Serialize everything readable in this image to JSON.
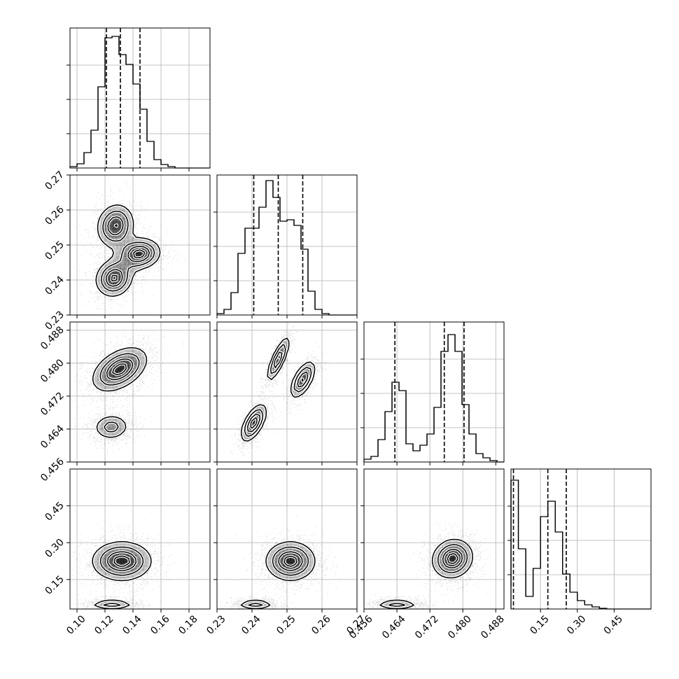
{
  "chart_data": {
    "type": "corner",
    "title": "",
    "parameters": [
      {
        "range": [
          0.095,
          0.195
        ],
        "ticks": [
          0.1,
          0.12,
          0.14,
          0.16,
          0.18
        ],
        "tick_labels": [
          "0.10",
          "0.12",
          "0.14",
          "0.16",
          "0.18"
        ],
        "quantiles": [
          0.121,
          0.131,
          0.145
        ],
        "hist": {
          "bin_edges": [
            0.095,
            0.1,
            0.105,
            0.11,
            0.115,
            0.12,
            0.125,
            0.13,
            0.135,
            0.14,
            0.145,
            0.15,
            0.155,
            0.16,
            0.165,
            0.17,
            0.175,
            0.18,
            0.185,
            0.19,
            0.195
          ],
          "counts": [
            0.01,
            0.03,
            0.11,
            0.27,
            0.58,
            0.93,
            0.94,
            0.81,
            0.74,
            0.6,
            0.42,
            0.19,
            0.06,
            0.025,
            0.01,
            0,
            0,
            0,
            0,
            0
          ]
        }
      },
      {
        "range": [
          0.23,
          0.27
        ],
        "ticks": [
          0.23,
          0.24,
          0.25,
          0.26,
          0.27
        ],
        "tick_labels": [
          "0.23",
          "0.24",
          "0.25",
          "0.26",
          "0.27"
        ],
        "quantiles": [
          0.2405,
          0.2475,
          0.2545
        ],
        "hist": {
          "bin_edges": [
            0.23,
            0.232,
            0.234,
            0.236,
            0.238,
            0.24,
            0.242,
            0.244,
            0.246,
            0.248,
            0.25,
            0.252,
            0.254,
            0.256,
            0.258,
            0.26,
            0.262,
            0.264,
            0.266,
            0.268,
            0.27
          ],
          "counts": [
            0.01,
            0.04,
            0.16,
            0.44,
            0.62,
            0.62,
            0.77,
            0.96,
            0.84,
            0.67,
            0.68,
            0.64,
            0.47,
            0.17,
            0.04,
            0.01,
            0,
            0,
            0,
            0
          ]
        }
      },
      {
        "range": [
          0.456,
          0.49
        ],
        "ticks": [
          0.456,
          0.464,
          0.472,
          0.48,
          0.488
        ],
        "tick_labels": [
          "0.456",
          "0.464",
          "0.472",
          "0.480",
          "0.488"
        ],
        "quantiles": [
          0.4635,
          0.4755,
          0.4803
        ],
        "hist": {
          "bin_edges": [
            0.456,
            0.4577,
            0.4594,
            0.4611,
            0.4628,
            0.4645,
            0.4662,
            0.4679,
            0.4696,
            0.4713,
            0.473,
            0.4747,
            0.4764,
            0.4781,
            0.4798,
            0.4815,
            0.4832,
            0.4849,
            0.4866,
            0.4883,
            0.49
          ],
          "counts": [
            0.02,
            0.04,
            0.16,
            0.36,
            0.57,
            0.51,
            0.13,
            0.08,
            0.12,
            0.2,
            0.39,
            0.79,
            0.91,
            0.79,
            0.41,
            0.2,
            0.06,
            0.03,
            0.01,
            0
          ]
        }
      },
      {
        "range": [
          0.03,
          0.6
        ],
        "ticks": [
          0.15,
          0.3,
          0.45
        ],
        "tick_labels": [
          "0.15",
          "0.30",
          "0.45"
        ],
        "quantiles": [
          0.04,
          0.18,
          0.255
        ],
        "hist": {
          "bin_edges": [
            0.0,
            0.03,
            0.06,
            0.09,
            0.12,
            0.15,
            0.18,
            0.21,
            0.24,
            0.27,
            0.3,
            0.33,
            0.36,
            0.39,
            0.42,
            0.45,
            0.48,
            0.51,
            0.54,
            0.57,
            0.6
          ],
          "counts": [
            0.16,
            0.92,
            0.43,
            0.09,
            0.29,
            0.66,
            0.77,
            0.55,
            0.25,
            0.12,
            0.06,
            0.03,
            0.015,
            0.005,
            0,
            0,
            0,
            0,
            0,
            0
          ]
        }
      }
    ],
    "joint": [
      {
        "row": 1,
        "col": 0,
        "modes": [
          {
            "center": [
              0.1275,
              0.2555
            ],
            "sigma": [
              0.0075,
              0.0035
            ],
            "rho": 0.1,
            "weight": 0.32
          },
          {
            "center": [
              0.1445,
              0.2475
            ],
            "sigma": [
              0.0085,
              0.0025
            ],
            "rho": 0.1,
            "weight": 0.35
          },
          {
            "center": [
              0.1265,
              0.2405
            ],
            "sigma": [
              0.0075,
              0.003
            ],
            "rho": 0.1,
            "weight": 0.33
          }
        ]
      },
      {
        "row": 2,
        "col": 0,
        "modes": [
          {
            "center": [
              0.1305,
              0.4785
            ],
            "sigma": [
              0.011,
              0.003
            ],
            "rho": 0.45,
            "weight": 0.64
          },
          {
            "center": [
              0.1245,
              0.4645
            ],
            "sigma": [
              0.0075,
              0.0018
            ],
            "rho": 0.05,
            "weight": 0.36
          }
        ]
      },
      {
        "row": 2,
        "col": 1,
        "modes": [
          {
            "center": [
              0.2475,
              0.481
            ],
            "sigma": [
              0.0018,
              0.003
            ],
            "rho": 0.8,
            "weight": 0.32
          },
          {
            "center": [
              0.2545,
              0.476
            ],
            "sigma": [
              0.002,
              0.0025
            ],
            "rho": 0.6,
            "weight": 0.32
          },
          {
            "center": [
              0.2405,
              0.4655
            ],
            "sigma": [
              0.002,
              0.0025
            ],
            "rho": 0.6,
            "weight": 0.36
          }
        ]
      },
      {
        "row": 3,
        "col": 0,
        "modes": [
          {
            "center": [
              0.132,
              0.225
            ],
            "sigma": [
              0.012,
              0.045
            ],
            "rho": 0.0,
            "weight": 0.64
          },
          {
            "center": [
              0.125,
              0.048
            ],
            "sigma": [
              0.009,
              0.012
            ],
            "rho": 0.0,
            "weight": 0.36
          }
        ]
      },
      {
        "row": 3,
        "col": 1,
        "modes": [
          {
            "center": [
              0.251,
              0.225
            ],
            "sigma": [
              0.004,
              0.045
            ],
            "rho": 0.0,
            "weight": 0.64
          },
          {
            "center": [
              0.241,
              0.048
            ],
            "sigma": [
              0.003,
              0.012
            ],
            "rho": 0.0,
            "weight": 0.36
          }
        ]
      },
      {
        "row": 3,
        "col": 2,
        "modes": [
          {
            "center": [
              0.4775,
              0.235
            ],
            "sigma": [
              0.0028,
              0.045
            ],
            "rho": 0.1,
            "weight": 0.64
          },
          {
            "center": [
              0.464,
              0.048
            ],
            "sigma": [
              0.003,
              0.012
            ],
            "rho": 0.0,
            "weight": 0.36
          }
        ]
      }
    ],
    "contour_levels": [
      0.9,
      0.7,
      0.45,
      0.22
    ],
    "grid": true,
    "colors": {
      "line": "#000000",
      "grid": "#b0b0b0",
      "density": "#000000"
    }
  }
}
